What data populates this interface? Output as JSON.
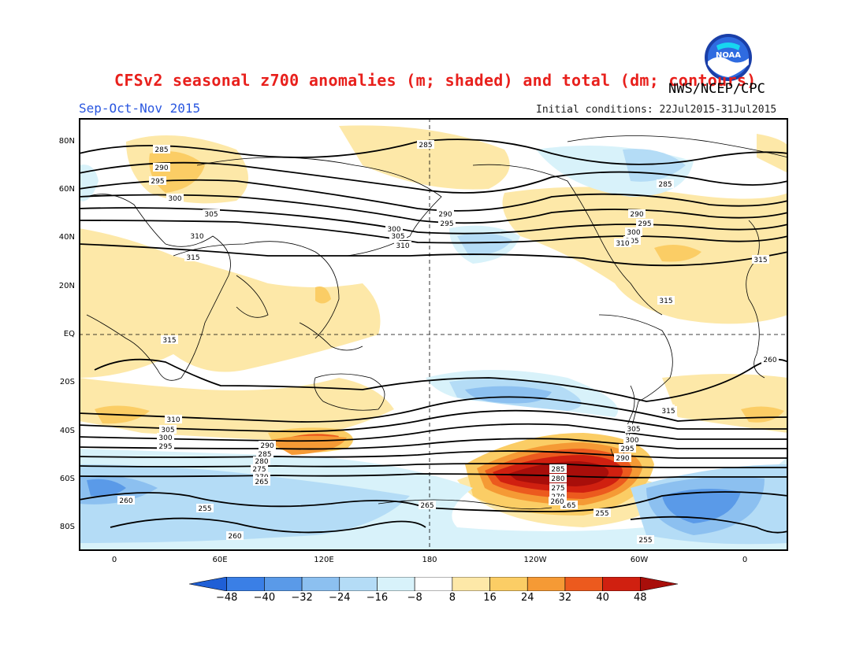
{
  "title": "CFSv2 seasonal z700 anomalies (m; shaded) and total (dm; contours)",
  "agency": "NWS/NCEP/CPC",
  "logo_text": "NOAA",
  "season": "Sep-Oct-Nov 2015",
  "initial_conditions": "Initial conditions: 22Jul2015-31Jul2015",
  "lat_labels": [
    "80N",
    "60N",
    "40N",
    "20N",
    "EQ",
    "20S",
    "40S",
    "60S",
    "80S"
  ],
  "lon_labels": [
    "0",
    "60E",
    "120E",
    "180",
    "120W",
    "60W",
    "0"
  ],
  "colorbar": {
    "levels": [
      "-48",
      "-40",
      "-32",
      "-24",
      "-16",
      "-8",
      "8",
      "16",
      "24",
      "32",
      "40",
      "48"
    ],
    "colors": [
      "#1f5fd6",
      "#3a7fe6",
      "#5a9ae8",
      "#8cc0f0",
      "#b4dcf6",
      "#d8f2fa",
      "#ffffff",
      "#fde8a8",
      "#fbcd65",
      "#f59a35",
      "#ec5a1e",
      "#d02010",
      "#a80e0a"
    ]
  },
  "contour_labels": [
    "285",
    "290",
    "295",
    "300",
    "305",
    "310",
    "315",
    "285",
    "290",
    "295",
    "300",
    "305",
    "310",
    "285",
    "290",
    "295",
    "300",
    "305",
    "310",
    "315",
    "315",
    "310",
    "305",
    "300",
    "295",
    "290",
    "285",
    "280",
    "275",
    "270",
    "265",
    "260",
    "255",
    "315",
    "310",
    "305",
    "300",
    "295",
    "290",
    "285",
    "280",
    "275",
    "270",
    "265",
    "260",
    "255",
    "260",
    "265",
    "255",
    "260",
    "315",
    "310"
  ]
}
